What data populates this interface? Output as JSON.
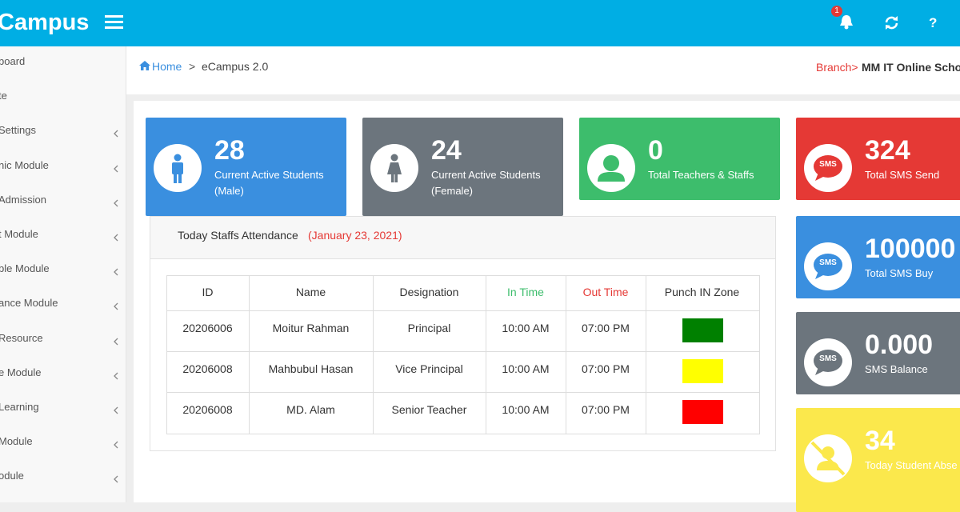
{
  "header": {
    "brand": "Campus",
    "notification_count": "1",
    "help": "?"
  },
  "sidebar": {
    "items": [
      {
        "label": "board",
        "submenu": false
      },
      {
        "label": "te",
        "submenu": false
      },
      {
        "label": "Settings",
        "submenu": true
      },
      {
        "label": "nic Module",
        "submenu": true
      },
      {
        "label": "Admission",
        "submenu": true
      },
      {
        "label": "t Module",
        "submenu": true
      },
      {
        "label": "ble Module",
        "submenu": true
      },
      {
        "label": "ance Module",
        "submenu": true
      },
      {
        "label": "Resource",
        "submenu": true
      },
      {
        "label": "e Module",
        "submenu": true
      },
      {
        "label": "Learning",
        "submenu": true
      },
      {
        "label": "Module",
        "submenu": true
      },
      {
        "label": "odule",
        "submenu": true
      }
    ]
  },
  "breadcrumb": {
    "home": "Home",
    "separator": ">",
    "current": "eCampus 2.0",
    "branch_label": "Branch>",
    "branch_name": "MM IT Online Scho"
  },
  "cards": [
    {
      "value": "28",
      "label": "Current Active Students (Male)",
      "color": "#3a8fdf",
      "icon": "male"
    },
    {
      "value": "24",
      "label": "Current Active Students (Female)",
      "color": "#6c757d",
      "icon": "female"
    },
    {
      "value": "0",
      "label": "Total Teachers & Staffs",
      "color": "#3dbd6c",
      "icon": "user"
    },
    {
      "value": "324",
      "label": "Total SMS Send",
      "color": "#e53935",
      "icon": "sms",
      "icon_text": "SMS"
    },
    {
      "value": "100000",
      "label": "Total SMS Buy",
      "color": "#3a8fdf",
      "icon": "sms",
      "icon_text": "SMS"
    },
    {
      "value": "0.000",
      "label": "SMS Balance",
      "color": "#6c757d",
      "icon": "sms",
      "icon_text": "SMS"
    },
    {
      "value": "34",
      "label": "Today Student Abse",
      "color": "#fbe84c",
      "icon": "absent"
    }
  ],
  "attendance": {
    "title": "Today Staffs Attendance",
    "date": "(January 23, 2021)",
    "columns": [
      {
        "label": "ID",
        "color": "#333333"
      },
      {
        "label": "Name",
        "color": "#333333"
      },
      {
        "label": "Designation",
        "color": "#333333"
      },
      {
        "label": "In Time",
        "color": "#3dbd6c"
      },
      {
        "label": "Out Time",
        "color": "#e53935"
      },
      {
        "label": "Punch IN Zone",
        "color": "#333333"
      }
    ],
    "rows": [
      [
        "20206006",
        "Moitur Rahman",
        "Principal",
        "10:00 AM",
        "07:00 PM"
      ],
      [
        "20206008",
        "Mahbubul Hasan",
        "Vice Principal",
        "10:00 AM",
        "07:00 PM"
      ],
      [
        "20206008",
        "MD. Alam",
        "Senior Teacher",
        "10:00 AM",
        "07:00 PM"
      ]
    ],
    "zone_colors": [
      "#008000",
      "#ffff00",
      "#ff0000"
    ]
  }
}
